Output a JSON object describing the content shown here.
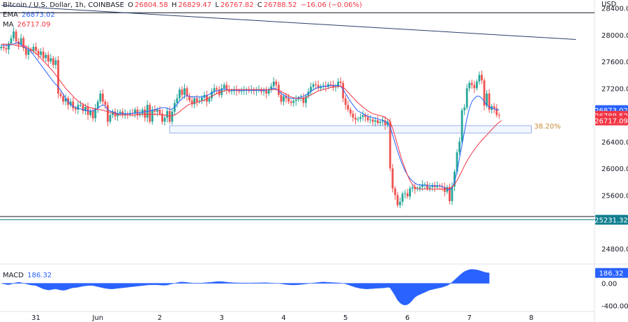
{
  "header": {
    "symbol": "Bitcoin / U.S. Dollar, 1h, COINBASE",
    "o_label": "O",
    "o_value": "26804.58",
    "h_label": "H",
    "h_value": "26829.47",
    "l_label": "L",
    "l_value": "26767.82",
    "c_label": "C",
    "c_value": "26788.52",
    "change": "−16.06 (−0.06%)",
    "ema_label": "EMA",
    "ema_value": "26873.02",
    "ma_label": "MA",
    "ma_value": "26717.09",
    "macd_label": "MACD",
    "macd_value": "186.32"
  },
  "currency": "USD",
  "fib_label": "38.20%",
  "colors": {
    "up": "#26a69a",
    "down": "#ef5350",
    "ema": "#2962ff",
    "ma": "#f23645",
    "macd": "#2962ff",
    "trend": "#2a3f6b",
    "support": "#0f7f8f"
  },
  "chart_data": {
    "type": "candlestick",
    "price_ylim": [
      24600,
      28500
    ],
    "price_ticks": [
      "28400.00",
      "28000.00",
      "27600.00",
      "27200.00",
      "26800.00",
      "26400.00",
      "26000.00",
      "25600.00",
      "24800.00"
    ],
    "price_tick_values": [
      28400,
      28000,
      27600,
      27200,
      26800,
      26400,
      26000,
      25600,
      24800
    ],
    "x_ticks": [
      "31",
      "Jun",
      "2",
      "3",
      "4",
      "5",
      "6",
      "7",
      "8"
    ],
    "x_tick_index": [
      14,
      39,
      64,
      89,
      114,
      139,
      164,
      189,
      214
    ],
    "price_badges": [
      {
        "value": 26873.02,
        "text": "26873.02",
        "color": "#2962ff"
      },
      {
        "value": 26788.52,
        "text": "26788.52",
        "color": "#f23645"
      },
      {
        "value": 26717.09,
        "text": "26717.09",
        "color": "#f23645"
      },
      {
        "value": 25231.32,
        "text": "25231.32",
        "color": "#0f7f8f"
      }
    ],
    "horizontal_lines": [
      {
        "value": 28330,
        "color": "#131722"
      },
      {
        "value": 25231.32,
        "color": "#0f7f8f"
      },
      {
        "value": 25280,
        "color": "#131722"
      }
    ],
    "trendline": {
      "from": [
        0,
        28440
      ],
      "to": [
        232,
        27930
      ]
    },
    "fib_zone": {
      "from_index": 68,
      "to_index": 214,
      "top": 26640,
      "bottom": 26530
    },
    "closes": [
      27820,
      27800,
      27780,
      27870,
      27950,
      28050,
      27900,
      27850,
      27950,
      27800,
      27700,
      27780,
      27760,
      27820,
      27760,
      27700,
      27750,
      27650,
      27700,
      27600,
      27650,
      27550,
      27620,
      27120,
      27080,
      27000,
      27050,
      26950,
      27000,
      26900,
      26880,
      26950,
      26950,
      26860,
      26920,
      26800,
      26860,
      26750,
      26900,
      27000,
      27120,
      27000,
      26950,
      26700,
      26800,
      26850,
      26780,
      26820,
      26850,
      26800,
      26820,
      26810,
      26830,
      26820,
      26880,
      26800,
      26820,
      26880,
      26760,
      26950,
      26700,
      26880,
      26850,
      26880,
      26820,
      26700,
      26760,
      26860,
      26700,
      26850,
      26980,
      27050,
      27180,
      27100,
      27200,
      27080,
      27020,
      26960,
      27050,
      27000,
      27010,
      27060,
      27100,
      27000,
      27050,
      27150,
      27200,
      27180,
      27100,
      27200,
      27250,
      27180,
      27150,
      27160,
      27180,
      27160,
      27150,
      27160,
      27170,
      27180,
      27160,
      27180,
      27160,
      27170,
      27180,
      27150,
      27160,
      27120,
      27180,
      27230,
      27300,
      27250,
      27100,
      27000,
      27080,
      27050,
      27000,
      26980,
      27010,
      27030,
      27050,
      27060,
      26980,
      27080,
      27150,
      27220,
      27260,
      27250,
      27200,
      27230,
      27240,
      27220,
      27260,
      27250,
      27220,
      27230,
      27300,
      27280,
      27050,
      26950,
      26880,
      26820,
      26760,
      26730,
      26740,
      26770,
      26800,
      26770,
      26720,
      26730,
      26700,
      26720,
      26680,
      26700,
      26720,
      26650,
      26700,
      26000,
      25700,
      25600,
      25450,
      25500,
      25620,
      25630,
      25580,
      25700,
      25720,
      25690,
      25700,
      25720,
      25760,
      25760,
      25700,
      25720,
      25750,
      25720,
      25740,
      25730,
      25720,
      25650,
      25720,
      25510,
      25730,
      25950,
      26240,
      26400,
      26870,
      26910,
      27200,
      27280,
      27250,
      27200,
      27300,
      27400,
      27320,
      26940,
      27120,
      26880,
      26930,
      26900,
      26800,
      26790
    ],
    "ema_values": [
      27840,
      27840,
      27840,
      27840,
      27860,
      27860,
      27880,
      27880,
      27860,
      27820,
      27800,
      27780,
      27750,
      27700,
      27650,
      27600,
      27550,
      27500,
      27450,
      27400,
      27350,
      27300,
      27260,
      27220,
      27170,
      27110,
      27050,
      27000,
      26960,
      26930,
      26910,
      26900,
      26890,
      26880,
      26870,
      26860,
      26860,
      26860,
      26880,
      26900,
      26930,
      26950,
      26930,
      26880,
      26860,
      26850,
      26830,
      26820,
      26820,
      26820,
      26820,
      26820,
      26820,
      26825,
      26830,
      26830,
      26835,
      26840,
      26850,
      26850,
      26860,
      26870,
      26880,
      26890,
      26900,
      26910,
      26910,
      26900,
      26880,
      26890,
      26920,
      26960,
      27010,
      27040,
      27080,
      27090,
      27080,
      27070,
      27070,
      27070,
      27070,
      27070,
      27080,
      27090,
      27110,
      27130,
      27150,
      27160,
      27170,
      27180,
      27190,
      27180,
      27175,
      27170,
      27170,
      27170,
      27170,
      27170,
      27170,
      27170,
      27170,
      27170,
      27170,
      27170,
      27170,
      27170,
      27170,
      27170,
      27180,
      27190,
      27200,
      27190,
      27160,
      27120,
      27100,
      27080,
      27060,
      27050,
      27050,
      27050,
      27060,
      27070,
      27080,
      27100,
      27120,
      27150,
      27180,
      27200,
      27210,
      27220,
      27225,
      27230,
      27235,
      27240,
      27240,
      27240,
      27240,
      27230,
      27180,
      27120,
      27060,
      27000,
      26950,
      26900,
      26860,
      26840,
      26820,
      26800,
      26780,
      26770,
      26760,
      26750,
      26740,
      26730,
      26720,
      26700,
      26680,
      26620,
      26500,
      26380,
      26260,
      26150,
      26050,
      25970,
      25900,
      25850,
      25810,
      25780,
      25760,
      25750,
      25750,
      25750,
      25740,
      25740,
      25740,
      25740,
      25740,
      25740,
      25730,
      25710,
      25690,
      25680,
      25700,
      25800,
      25950,
      26150,
      26350,
      26550,
      26750,
      26900,
      27000,
      27050,
      27080,
      27080,
      27050,
      27000,
      26950,
      26920,
      26900,
      26890,
      26880,
      26873
    ],
    "ma_values": [
      27860,
      27860,
      27860,
      27860,
      27860,
      27850,
      27840,
      27830,
      27830,
      27830,
      27820,
      27800,
      27780,
      27750,
      27720,
      27690,
      27650,
      27610,
      27570,
      27530,
      27490,
      27450,
      27400,
      27350,
      27300,
      27250,
      27200,
      27160,
      27120,
      27080,
      27040,
      27010,
      26980,
      26960,
      26940,
      26920,
      26910,
      26900,
      26890,
      26880,
      26880,
      26870,
      26860,
      26850,
      26840,
      26830,
      26820,
      26810,
      26800,
      26800,
      26800,
      26800,
      26800,
      26800,
      26800,
      26800,
      26810,
      26810,
      26810,
      26810,
      26810,
      26810,
      26810,
      26810,
      26810,
      26800,
      26800,
      26790,
      26780,
      26790,
      26800,
      26820,
      26850,
      26880,
      26910,
      26940,
      26960,
      26970,
      26980,
      26990,
      27000,
      27010,
      27020,
      27040,
      27060,
      27080,
      27100,
      27120,
      27140,
      27150,
      27160,
      27170,
      27175,
      27180,
      27180,
      27180,
      27180,
      27180,
      27180,
      27180,
      27180,
      27180,
      27180,
      27180,
      27180,
      27180,
      27180,
      27180,
      27180,
      27180,
      27180,
      27180,
      27170,
      27150,
      27130,
      27110,
      27090,
      27070,
      27060,
      27050,
      27050,
      27050,
      27050,
      27060,
      27080,
      27100,
      27120,
      27140,
      27160,
      27170,
      27180,
      27190,
      27200,
      27210,
      27215,
      27220,
      27225,
      27230,
      27220,
      27180,
      27140,
      27100,
      27060,
      27020,
      26980,
      26950,
      26920,
      26890,
      26860,
      26840,
      26820,
      26810,
      26800,
      26790,
      26780,
      26760,
      26740,
      26700,
      26600,
      26480,
      26350,
      26220,
      26100,
      26000,
      25900,
      25820,
      25760,
      25720,
      25700,
      25690,
      25690,
      25690,
      25690,
      25690,
      25690,
      25690,
      25690,
      25690,
      25690,
      25690,
      25700,
      25700,
      25720,
      25760,
      25820,
      25890,
      25960,
      26040,
      26110,
      26170,
      26230,
      26280,
      26330,
      26380,
      26420,
      26460,
      26500,
      26540,
      26580,
      26620,
      26660,
      26690,
      26717
    ],
    "macd_ylim": [
      -480,
      320
    ],
    "macd_ticks": [
      "0.00",
      "-400.00"
    ],
    "macd_tick_values": [
      0,
      -400
    ],
    "macd_values": [
      0,
      -10,
      -20,
      -25,
      -15,
      0,
      10,
      20,
      10,
      0,
      -10,
      -20,
      -30,
      -35,
      -40,
      -60,
      -80,
      -100,
      -110,
      -120,
      -115,
      -105,
      -100,
      -110,
      -120,
      -125,
      -120,
      -105,
      -90,
      -80,
      -75,
      -70,
      -60,
      -50,
      -45,
      -40,
      -38,
      -40,
      -50,
      -60,
      -70,
      -80,
      -90,
      -95,
      -100,
      -100,
      -95,
      -90,
      -85,
      -80,
      -75,
      -70,
      -65,
      -60,
      -55,
      -50,
      -45,
      -40,
      -35,
      -30,
      -28,
      -27,
      -26,
      -28,
      -30,
      -33,
      -35,
      -30,
      -20,
      -10,
      0,
      10,
      20,
      22,
      20,
      15,
      10,
      5,
      3,
      2,
      3,
      5,
      8,
      12,
      15,
      20,
      25,
      30,
      32,
      30,
      25,
      20,
      15,
      12,
      10,
      8,
      7,
      6,
      6,
      6,
      6,
      6,
      7,
      8,
      8,
      9,
      10,
      10,
      8,
      5,
      3,
      0,
      -3,
      -8,
      -15,
      -20,
      -25,
      -28,
      -30,
      -28,
      -25,
      -20,
      -15,
      -10,
      -5,
      0,
      5,
      10,
      15,
      20,
      22,
      20,
      18,
      15,
      12,
      10,
      8,
      5,
      0,
      -10,
      -25,
      -40,
      -55,
      -70,
      -80,
      -90,
      -95,
      -100,
      -100,
      -98,
      -95,
      -90,
      -88,
      -85,
      -83,
      -80,
      -70,
      -80,
      -150,
      -220,
      -300,
      -350,
      -380,
      -390,
      -380,
      -350,
      -300,
      -250,
      -220,
      -200,
      -180,
      -160,
      -140,
      -120,
      -110,
      -100,
      -90,
      -80,
      -70,
      -55,
      -40,
      -15,
      20,
      60,
      100,
      140,
      180,
      210,
      230,
      245,
      250,
      245,
      240,
      230,
      215,
      200,
      190,
      186.32
    ]
  }
}
